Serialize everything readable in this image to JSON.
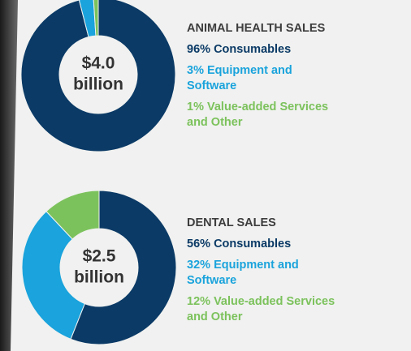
{
  "chart_data": [
    {
      "type": "pie",
      "title": "ANIMAL HEALTH SALES",
      "center_label": [
        "$4.0",
        "billion"
      ],
      "categories": [
        "Consumables",
        "Equipment and Software",
        "Value-added Services and Other"
      ],
      "values": [
        96,
        3,
        1
      ],
      "value_labels": [
        "96%",
        "3%",
        "1%"
      ],
      "colors": [
        "#0b3a66",
        "#1aa3dc",
        "#7cc25c"
      ]
    },
    {
      "type": "pie",
      "title": "DENTAL SALES",
      "center_label": [
        "$2.5",
        "billion"
      ],
      "categories": [
        "Consumables",
        "Equipment and Software",
        "Value-added Services and Other"
      ],
      "values": [
        56,
        32,
        12
      ],
      "value_labels": [
        "56%",
        "32%",
        "12%"
      ],
      "colors": [
        "#0b3a66",
        "#1aa3dc",
        "#7cc25c"
      ]
    }
  ]
}
